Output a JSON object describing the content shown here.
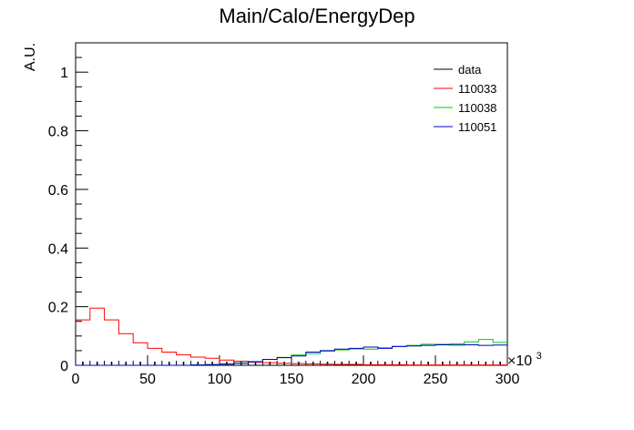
{
  "chart_data": {
    "type": "line",
    "title": "Main/Calo/EnergyDep",
    "xlabel": "",
    "ylabel": "A.U.",
    "x_multiplier": "×10",
    "x_multiplier_exp": "3",
    "xlim": [
      0,
      300
    ],
    "ylim": [
      0,
      1.1
    ],
    "xticks": [
      0,
      50,
      100,
      150,
      200,
      250,
      300
    ],
    "yticks": [
      0,
      0.2,
      0.4,
      0.6,
      0.8,
      1
    ],
    "legend_position": "top-right",
    "bin_edges": [
      0,
      10,
      20,
      30,
      40,
      50,
      60,
      70,
      80,
      90,
      100,
      110,
      120,
      130,
      140,
      150,
      160,
      170,
      180,
      190,
      200,
      210,
      220,
      230,
      240,
      250,
      260,
      270,
      280,
      290,
      300
    ],
    "series": [
      {
        "name": "data",
        "color": "#000000",
        "style": "markers",
        "values": [
          0,
          0,
          0,
          0,
          0,
          0,
          0,
          0,
          0,
          0,
          0,
          0,
          0,
          0,
          0,
          0,
          0,
          0,
          0,
          0,
          0,
          0,
          0,
          0,
          0,
          0,
          0,
          0,
          0,
          0
        ]
      },
      {
        "name": "110033",
        "color": "#ff0000",
        "style": "step",
        "values": [
          0.155,
          0.195,
          0.155,
          0.108,
          0.077,
          0.058,
          0.045,
          0.036,
          0.028,
          0.024,
          0.018,
          0.014,
          0.011,
          0.009,
          0.007,
          0.006,
          0.005,
          0.004,
          0.003,
          0.003,
          0.002,
          0.002,
          0.002,
          0.001,
          0.001,
          0.001,
          0.001,
          0.001,
          0.001,
          0.001
        ]
      },
      {
        "name": "110038",
        "color": "#00cc00",
        "style": "step",
        "values": [
          0,
          0,
          0,
          0,
          0,
          0,
          0,
          0,
          0.002,
          0.003,
          0.005,
          0.008,
          0.013,
          0.02,
          0.027,
          0.035,
          0.04,
          0.048,
          0.053,
          0.056,
          0.055,
          0.06,
          0.065,
          0.068,
          0.072,
          0.072,
          0.073,
          0.08,
          0.088,
          0.078
        ]
      },
      {
        "name": "110051",
        "color": "#0000cc",
        "style": "step",
        "values": [
          0,
          0,
          0,
          0,
          0,
          0,
          0,
          0,
          0.001,
          0.002,
          0.004,
          0.007,
          0.012,
          0.02,
          0.026,
          0.032,
          0.045,
          0.05,
          0.055,
          0.058,
          0.062,
          0.058,
          0.064,
          0.066,
          0.068,
          0.07,
          0.069,
          0.07,
          0.068,
          0.069
        ]
      }
    ]
  }
}
